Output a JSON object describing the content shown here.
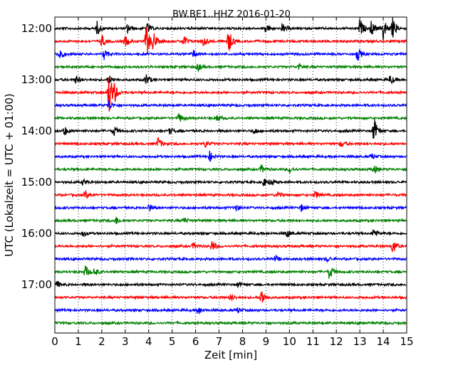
{
  "chart_data": {
    "type": "line",
    "title": "BW.BE1..HHZ 2016-01-20",
    "xlabel": "Zeit  [min]",
    "ylabel": "UTC (Lokalzeit = UTC + 01:00)",
    "xlim": [
      0,
      15
    ],
    "x_ticks": [
      "0",
      "1",
      "2",
      "3",
      "4",
      "5",
      "6",
      "7",
      "8",
      "9",
      "10",
      "11",
      "12",
      "13",
      "14",
      "15"
    ],
    "y_ticks": [
      "12:00",
      "13:00",
      "14:00",
      "15:00",
      "16:00",
      "17:00"
    ],
    "grid": "vertical dotted at each minute",
    "trace_colors": [
      "#000000",
      "#ff0000",
      "#0000ff",
      "#008000"
    ],
    "traces": [
      {
        "start": "12:00",
        "events": [
          {
            "t": 1.8,
            "amp": 0.8
          },
          {
            "t": 3.1,
            "amp": 0.6
          },
          {
            "t": 3.9,
            "amp": 0.8
          },
          {
            "t": 9.0,
            "amp": 0.6
          },
          {
            "t": 9.7,
            "amp": 0.6
          },
          {
            "t": 13.0,
            "amp": 1.2
          },
          {
            "t": 13.5,
            "amp": 1.0
          },
          {
            "t": 14.0,
            "amp": 1.5
          },
          {
            "t": 14.4,
            "amp": 1.2
          }
        ]
      },
      {
        "start": "12:15",
        "events": [
          {
            "t": 2.0,
            "amp": 0.8
          },
          {
            "t": 3.0,
            "amp": 0.7
          },
          {
            "t": 3.9,
            "amp": 2.2
          },
          {
            "t": 4.2,
            "amp": 1.0
          },
          {
            "t": 5.5,
            "amp": 0.8
          },
          {
            "t": 6.3,
            "amp": 0.8
          },
          {
            "t": 7.4,
            "amp": 1.6
          }
        ]
      },
      {
        "start": "12:30",
        "events": [
          {
            "t": 0.2,
            "amp": 0.9
          },
          {
            "t": 2.1,
            "amp": 0.7
          },
          {
            "t": 5.9,
            "amp": 0.5
          },
          {
            "t": 12.9,
            "amp": 0.9
          }
        ]
      },
      {
        "start": "12:45",
        "events": [
          {
            "t": 6.1,
            "amp": 0.5
          },
          {
            "t": 10.4,
            "amp": 0.4
          }
        ]
      },
      {
        "start": "13:00",
        "events": [
          {
            "t": 0.9,
            "amp": 0.5
          },
          {
            "t": 2.3,
            "amp": 0.6
          },
          {
            "t": 3.9,
            "amp": 0.7
          },
          {
            "t": 14.3,
            "amp": 0.6
          }
        ]
      },
      {
        "start": "13:15",
        "events": [
          {
            "t": 2.3,
            "amp": 3.0
          },
          {
            "t": 2.5,
            "amp": 1.2
          }
        ]
      },
      {
        "start": "13:30",
        "events": [
          {
            "t": 2.3,
            "amp": 0.6
          }
        ]
      },
      {
        "start": "13:45",
        "events": [
          {
            "t": 5.3,
            "amp": 0.6
          },
          {
            "t": 6.9,
            "amp": 0.5
          }
        ]
      },
      {
        "start": "14:00",
        "events": [
          {
            "t": 0.4,
            "amp": 0.6
          },
          {
            "t": 2.5,
            "amp": 0.7
          },
          {
            "t": 4.9,
            "amp": 0.4
          },
          {
            "t": 8.5,
            "amp": 0.4
          },
          {
            "t": 13.6,
            "amp": 1.6
          }
        ]
      },
      {
        "start": "14:15",
        "events": [
          {
            "t": 4.4,
            "amp": 0.8
          },
          {
            "t": 6.4,
            "amp": 0.5
          },
          {
            "t": 12.2,
            "amp": 0.4
          }
        ]
      },
      {
        "start": "14:30",
        "events": [
          {
            "t": 6.6,
            "amp": 0.6
          },
          {
            "t": 13.5,
            "amp": 0.4
          }
        ]
      },
      {
        "start": "14:45",
        "events": [
          {
            "t": 8.8,
            "amp": 0.5
          },
          {
            "t": 10.0,
            "amp": 0.4
          },
          {
            "t": 13.6,
            "amp": 0.5
          }
        ]
      },
      {
        "start": "15:00",
        "events": [
          {
            "t": 1.2,
            "amp": 0.4
          },
          {
            "t": 8.9,
            "amp": 0.5
          },
          {
            "t": 9.2,
            "amp": 0.5
          }
        ]
      },
      {
        "start": "15:15",
        "events": [
          {
            "t": 1.3,
            "amp": 0.5
          },
          {
            "t": 9.5,
            "amp": 0.5
          },
          {
            "t": 11.1,
            "amp": 0.5
          }
        ]
      },
      {
        "start": "15:30",
        "events": [
          {
            "t": 4.0,
            "amp": 0.5
          },
          {
            "t": 7.7,
            "amp": 0.5
          },
          {
            "t": 10.5,
            "amp": 0.4
          }
        ]
      },
      {
        "start": "15:45",
        "events": [
          {
            "t": 2.6,
            "amp": 0.5
          },
          {
            "t": 5.5,
            "amp": 0.4
          }
        ]
      },
      {
        "start": "16:00",
        "events": [
          {
            "t": 1.2,
            "amp": 0.4
          },
          {
            "t": 9.9,
            "amp": 0.5
          },
          {
            "t": 13.6,
            "amp": 0.7
          }
        ]
      },
      {
        "start": "16:15",
        "events": [
          {
            "t": 5.9,
            "amp": 0.4
          },
          {
            "t": 6.7,
            "amp": 0.7
          },
          {
            "t": 14.4,
            "amp": 1.0
          }
        ]
      },
      {
        "start": "16:30",
        "events": [
          {
            "t": 9.4,
            "amp": 0.4
          },
          {
            "t": 11.6,
            "amp": 0.3
          }
        ]
      },
      {
        "start": "16:45",
        "events": [
          {
            "t": 1.3,
            "amp": 0.8
          },
          {
            "t": 1.7,
            "amp": 0.5
          },
          {
            "t": 11.7,
            "amp": 1.0
          }
        ]
      },
      {
        "start": "17:00",
        "events": [
          {
            "t": 0.1,
            "amp": 0.4
          },
          {
            "t": 7.8,
            "amp": 0.3
          }
        ]
      },
      {
        "start": "17:15",
        "events": [
          {
            "t": 7.5,
            "amp": 0.5
          },
          {
            "t": 8.8,
            "amp": 1.2
          }
        ]
      },
      {
        "start": "17:30",
        "events": [
          {
            "t": 6.1,
            "amp": 0.6
          },
          {
            "t": 7.8,
            "amp": 0.3
          }
        ]
      },
      {
        "start": "17:45",
        "events": []
      }
    ]
  }
}
